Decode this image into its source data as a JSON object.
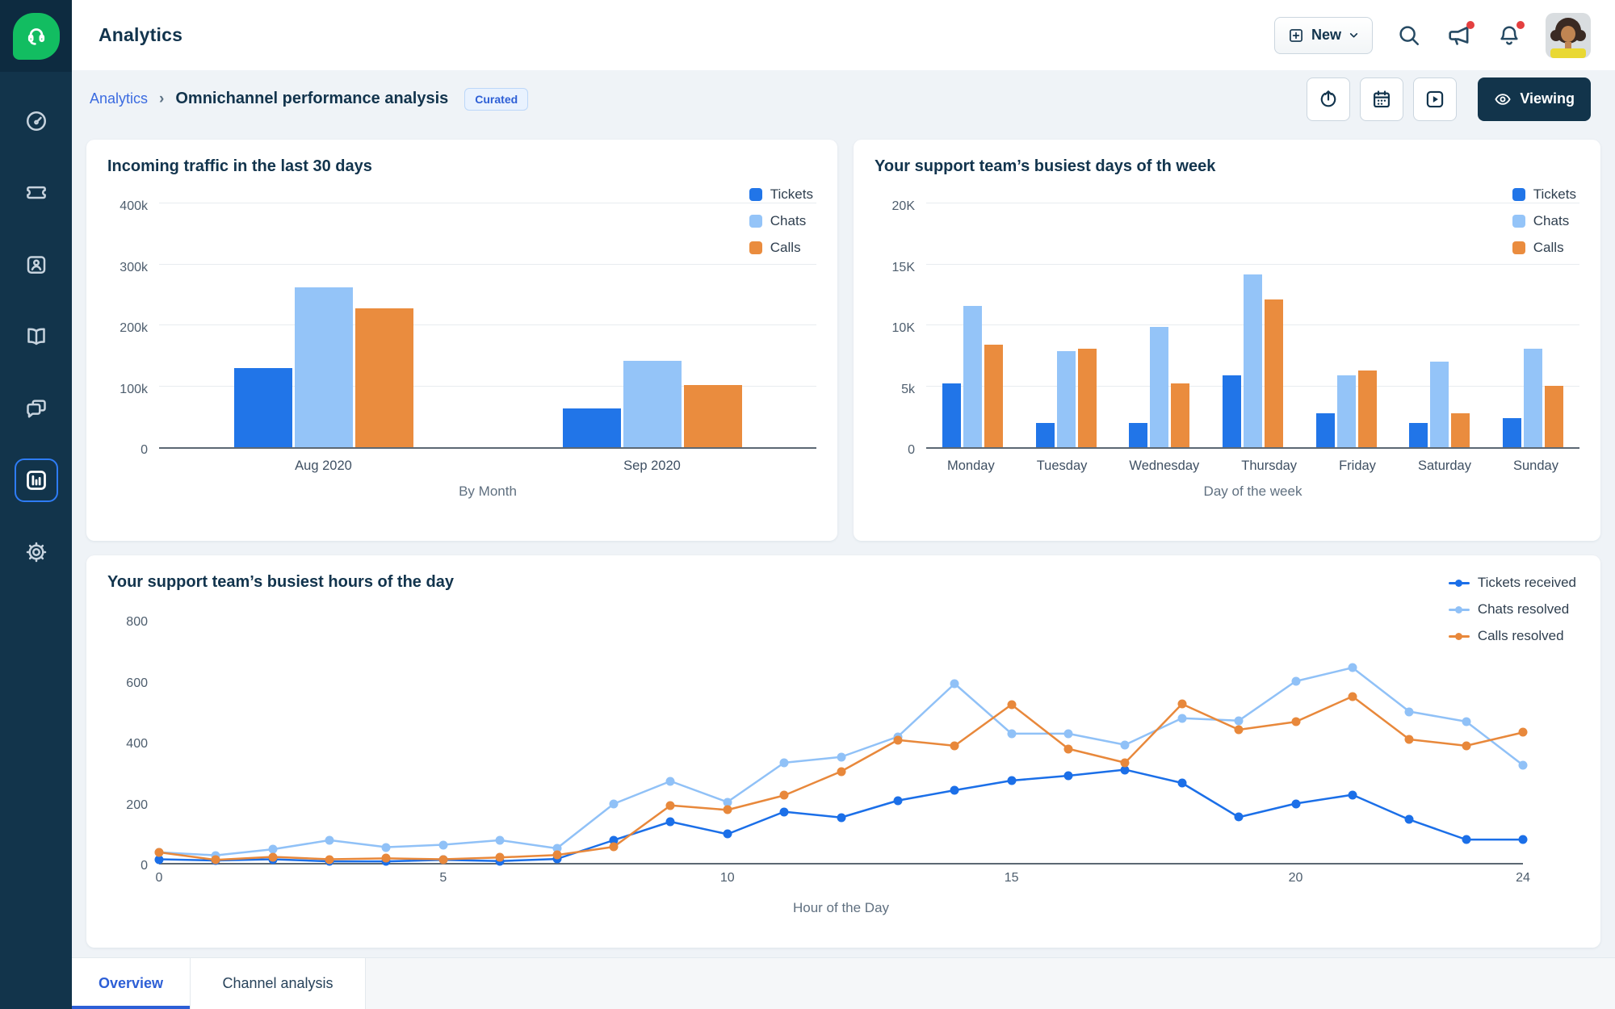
{
  "app": {
    "title": "Analytics"
  },
  "topbar": {
    "new_button": "New",
    "icons": [
      "search",
      "announcements",
      "notifications"
    ],
    "notification_dot_color": "#e43f3f"
  },
  "breadcrumb": {
    "parent": "Analytics",
    "separator": "›",
    "current": "Omnichannel performance analysis",
    "badge": "Curated"
  },
  "toolbar": {
    "viewing_label": "Viewing"
  },
  "tabs": [
    {
      "label": "Overview",
      "active": true
    },
    {
      "label": "Channel analysis",
      "active": false
    }
  ],
  "colors": {
    "sidebar": "#12344b",
    "brand_green": "#12bd61",
    "accent_blue": "#2d5fd6",
    "tickets": "#2175e8",
    "chats": "#94c4f8",
    "calls": "#ea8c3e"
  },
  "chart_data": [
    {
      "id": "incoming_traffic",
      "type": "bar",
      "title": "Incoming traffic in the last 30 days",
      "categories": [
        "Aug 2020",
        "Sep 2020"
      ],
      "series": [
        {
          "name": "Tickets",
          "color": "#2175e8",
          "values": [
            130000,
            64000
          ]
        },
        {
          "name": "Chats",
          "color": "#94c4f8",
          "values": [
            262000,
            142000
          ]
        },
        {
          "name": "Calls",
          "color": "#ea8c3e",
          "values": [
            228000,
            102000
          ]
        }
      ],
      "xlabel": "By Month",
      "ymax": 400000,
      "grid": true,
      "legend_position": "top-right",
      "yticks": [
        {
          "label": "0",
          "value": 0
        },
        {
          "label": "100k",
          "value": 100000
        },
        {
          "label": "200k",
          "value": 200000
        },
        {
          "label": "300k",
          "value": 300000
        },
        {
          "label": "400k",
          "value": 400000
        }
      ]
    },
    {
      "id": "busiest_days",
      "type": "bar",
      "title": "Your support team’s busiest days of th week",
      "categories": [
        "Monday",
        "Tuesday",
        "Wednesday",
        "Thursday",
        "Friday",
        "Saturday",
        "Sunday"
      ],
      "series": [
        {
          "name": "Tickets",
          "color": "#2175e8",
          "values": [
            5200,
            2000,
            2000,
            5900,
            2800,
            2000,
            2400
          ]
        },
        {
          "name": "Chats",
          "color": "#94c4f8",
          "values": [
            11600,
            7900,
            9900,
            14200,
            5900,
            7000,
            8100
          ]
        },
        {
          "name": "Calls",
          "color": "#ea8c3e",
          "values": [
            8400,
            8100,
            5200,
            12100,
            6300,
            2800,
            5000
          ]
        }
      ],
      "xlabel": "Day of the week",
      "ymax": 20000,
      "grid": true,
      "legend_position": "top-right",
      "yticks": [
        {
          "label": "0",
          "value": 0
        },
        {
          "label": "5k",
          "value": 5000
        },
        {
          "label": "10K",
          "value": 10000
        },
        {
          "label": "15K",
          "value": 15000
        },
        {
          "label": "20K",
          "value": 20000
        }
      ]
    },
    {
      "id": "busiest_hours",
      "type": "line",
      "title": "Your support team’s busiest hours of the day",
      "x": [
        0,
        1,
        2,
        3,
        4,
        5,
        6,
        7,
        8,
        9,
        10,
        11,
        12,
        13,
        14,
        15,
        16,
        17,
        18,
        19,
        20,
        21,
        22,
        23,
        24
      ],
      "series": [
        {
          "name": "Tickets received",
          "color": "#1b6fe8",
          "values": [
            12,
            8,
            12,
            5,
            5,
            10,
            6,
            13,
            75,
            136,
            95,
            169,
            150,
            206,
            240,
            272,
            288,
            308,
            264,
            151,
            196,
            225,
            143,
            77,
            77
          ]
        },
        {
          "name": "Chats resolved",
          "color": "#90c1f7",
          "values": [
            35,
            25,
            45,
            75,
            52,
            60,
            75,
            48,
            195,
            270,
            201,
            331,
            350,
            417,
            592,
            427,
            427,
            390,
            478,
            470,
            600,
            645,
            500,
            467,
            323
          ]
        },
        {
          "name": "Calls resolved",
          "color": "#e8883b",
          "values": [
            35,
            10,
            20,
            12,
            15,
            12,
            18,
            26,
            53,
            190,
            175,
            223,
            302,
            406,
            387,
            523,
            377,
            331,
            525,
            440,
            466,
            550,
            408,
            387,
            431
          ]
        }
      ],
      "xlabel": "Hour of the Day",
      "ymax": 800,
      "xmax": 24,
      "grid": false,
      "legend_position": "top-right",
      "yticks": [
        {
          "label": "0",
          "value": 0
        },
        {
          "label": "200",
          "value": 200
        },
        {
          "label": "400",
          "value": 400
        },
        {
          "label": "600",
          "value": 600
        },
        {
          "label": "800",
          "value": 800
        }
      ],
      "xticks": [
        {
          "label": "0",
          "value": 0
        },
        {
          "label": "5",
          "value": 5
        },
        {
          "label": "10",
          "value": 10
        },
        {
          "label": "15",
          "value": 15
        },
        {
          "label": "20",
          "value": 20
        },
        {
          "label": "24",
          "value": 24
        }
      ]
    }
  ]
}
